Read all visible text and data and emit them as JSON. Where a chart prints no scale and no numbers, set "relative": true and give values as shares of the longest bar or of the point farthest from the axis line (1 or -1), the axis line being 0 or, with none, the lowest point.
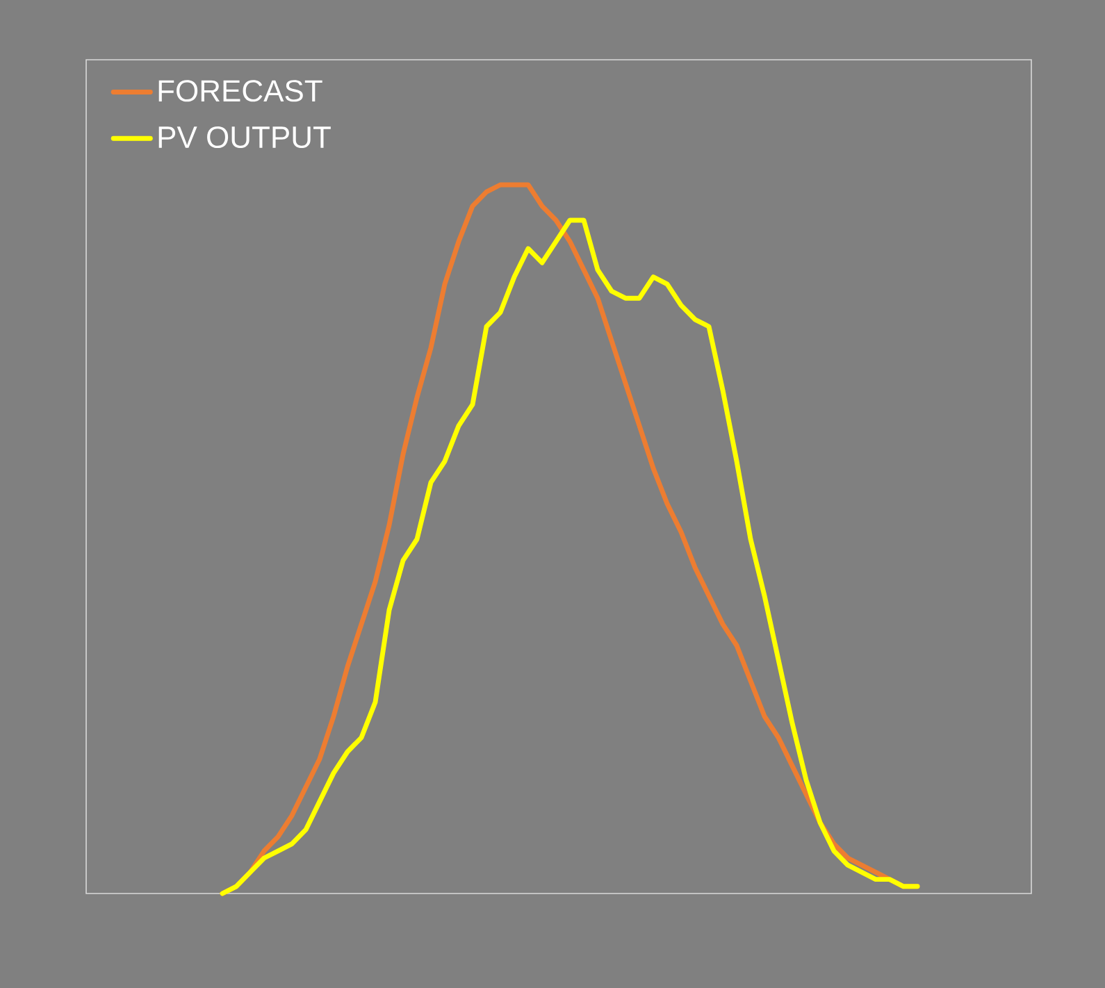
{
  "chart_data": {
    "type": "line",
    "relative": true,
    "legend": "top left",
    "tick_labels": false,
    "marker": "none",
    "line_style": "solid",
    "categories": [
      null,
      null,
      null,
      null,
      null,
      null,
      null,
      null,
      null,
      null,
      null,
      null,
      null,
      null,
      null,
      null,
      null,
      null,
      null,
      null,
      null,
      null,
      null,
      null,
      null,
      null,
      null,
      null,
      null,
      null,
      null,
      null,
      null,
      null,
      null,
      null,
      null,
      null,
      null,
      null,
      null,
      null,
      null,
      null,
      null,
      null,
      null,
      null,
      null,
      null,
      null
    ],
    "series": [
      {
        "name": "FORECAST",
        "color": "#ed7d31",
        "values": [
          0,
          0.01,
          0.03,
          0.06,
          0.08,
          0.11,
          0.15,
          0.19,
          0.25,
          0.32,
          0.38,
          0.44,
          0.52,
          0.62,
          0.7,
          0.77,
          0.86,
          0.92,
          0.97,
          0.99,
          1.0,
          1.0,
          1.0,
          0.97,
          0.95,
          0.92,
          0.88,
          0.84,
          0.78,
          0.72,
          0.66,
          0.6,
          0.55,
          0.51,
          0.46,
          0.42,
          0.38,
          0.35,
          0.3,
          0.25,
          0.22,
          0.18,
          0.14,
          0.1,
          0.07,
          0.05,
          0.04,
          0.03,
          0.02,
          0.01,
          0.01
        ]
      },
      {
        "name": "PV OUTPUT",
        "color": "#ffff00",
        "values": [
          0,
          0.01,
          0.03,
          0.05,
          0.06,
          0.07,
          0.09,
          0.13,
          0.17,
          0.2,
          0.22,
          0.27,
          0.4,
          0.47,
          0.5,
          0.58,
          0.61,
          0.66,
          0.69,
          0.8,
          0.82,
          0.87,
          0.91,
          0.89,
          0.92,
          0.95,
          0.95,
          0.88,
          0.85,
          0.84,
          0.84,
          0.87,
          0.86,
          0.83,
          0.81,
          0.8,
          0.71,
          0.61,
          0.5,
          0.42,
          0.33,
          0.24,
          0.16,
          0.1,
          0.06,
          0.04,
          0.03,
          0.02,
          0.02,
          0.01,
          0.01
        ]
      }
    ]
  }
}
